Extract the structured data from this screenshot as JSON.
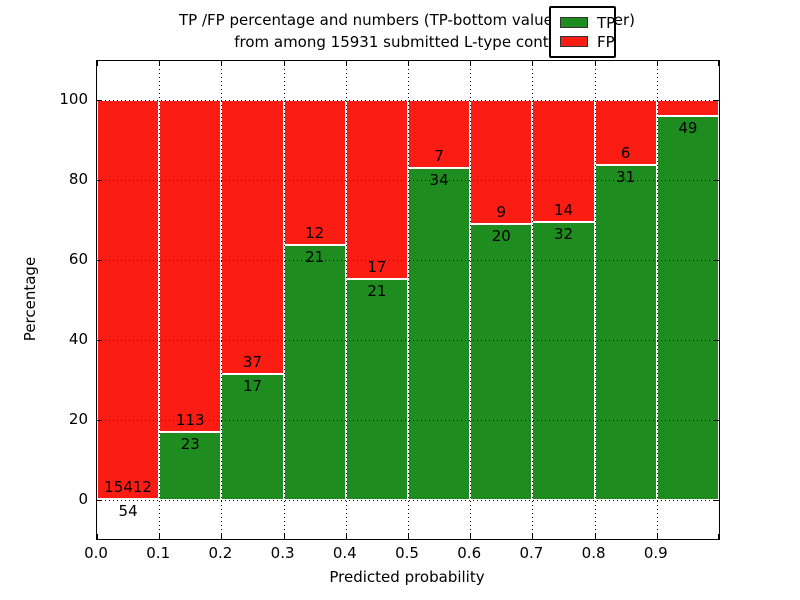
{
  "figure": {
    "title_line1": "TP /FP percentage and numbers (TP-bottom value, FP-upper)",
    "title_line2": "from among 15931 submitted L-type contacts",
    "xlabel": "Predicted probability",
    "ylabel": "Percentage"
  },
  "legend": {
    "items": [
      {
        "label": "TP",
        "color": "#1e8c1e"
      },
      {
        "label": "FP",
        "color": "#fb1d14"
      }
    ]
  },
  "chart_data": {
    "type": "bar",
    "stacked": true,
    "title": "TP /FP percentage and numbers (TP-bottom value, FP-upper) from among 15931 submitted L-type contacts",
    "xlabel": "Predicted probability",
    "ylabel": "Percentage",
    "xlim": [
      0.0,
      1.0
    ],
    "ylim": [
      -10,
      110
    ],
    "grid": true,
    "grid_style": "dotted",
    "legend_position": "upper right",
    "x_tick_labels": [
      "0.0",
      "0.1",
      "0.2",
      "0.3",
      "0.4",
      "0.5",
      "0.6",
      "0.7",
      "0.8",
      "0.9"
    ],
    "y_tick_labels": [
      "0",
      "20",
      "40",
      "60",
      "80",
      "100"
    ],
    "y_tick_values": [
      0,
      20,
      40,
      60,
      80,
      100
    ],
    "bin_edges": [
      0.0,
      0.1,
      0.2,
      0.3,
      0.4,
      0.5,
      0.6,
      0.7,
      0.8,
      0.9,
      1.0
    ],
    "series": [
      {
        "name": "TP",
        "color": "#1e8c1e",
        "counts": [
          54,
          23,
          17,
          21,
          21,
          34,
          20,
          32,
          31,
          49
        ],
        "pct": [
          0.35,
          16.91,
          31.48,
          63.64,
          55.26,
          82.93,
          68.97,
          69.57,
          83.78,
          96.08
        ]
      },
      {
        "name": "FP",
        "color": "#fb1d14",
        "counts": [
          15412,
          113,
          37,
          12,
          17,
          7,
          9,
          14,
          6,
          null
        ],
        "pct": [
          99.65,
          83.09,
          68.52,
          36.36,
          44.74,
          17.07,
          31.03,
          30.43,
          16.22,
          3.92
        ]
      }
    ],
    "annotations": {
      "tp_labels": [
        "54",
        "23",
        "17",
        "21",
        "21",
        "34",
        "20",
        "32",
        "31",
        "49"
      ],
      "fp_labels": [
        "15412",
        "113",
        "37",
        "12",
        "17",
        "7",
        "9",
        "14",
        "6",
        ""
      ]
    }
  }
}
